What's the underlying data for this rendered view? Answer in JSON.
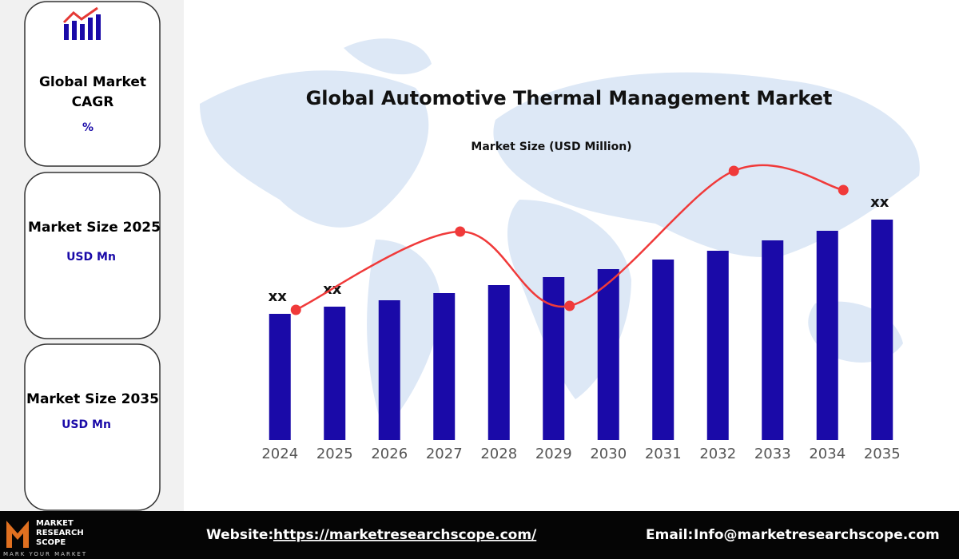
{
  "sidebar": {
    "cards": [
      {
        "title": "Global Market CAGR",
        "value": "%"
      },
      {
        "title": "Market Size 2025",
        "value": "USD Mn"
      },
      {
        "title": "Market Size 2035",
        "value": "USD Mn"
      }
    ]
  },
  "chart_data": {
    "type": "bar",
    "title": "Global Automotive Thermal Management Market",
    "subtitle": "Market Size (USD Million)",
    "categories": [
      "2024",
      "2025",
      "2026",
      "2027",
      "2028",
      "2029",
      "2030",
      "2031",
      "2032",
      "2033",
      "2034",
      "2035"
    ],
    "values": [
      158,
      167,
      175,
      184,
      194,
      204,
      214,
      226,
      237,
      250,
      262,
      276
    ],
    "value_labels": [
      "xx",
      "xx",
      null,
      null,
      null,
      null,
      null,
      null,
      null,
      null,
      null,
      "xx"
    ],
    "color": "#1a0aa8",
    "trend": {
      "x": [
        "2024",
        "2027",
        "2029",
        "2032",
        "2034"
      ],
      "values": [
        163,
        261,
        168,
        337,
        313
      ],
      "color": "#f03a3a"
    }
  },
  "footer": {
    "logo": {
      "line1": "MARKET",
      "line2": "RESEARCH",
      "line3": "SCOPE",
      "tagline": "MARK YOUR MARKET"
    },
    "website_label": "Website:",
    "website": "https://marketresearchscope.com/",
    "email_label": "Email:",
    "email": "Info@marketresearchscope.com"
  }
}
